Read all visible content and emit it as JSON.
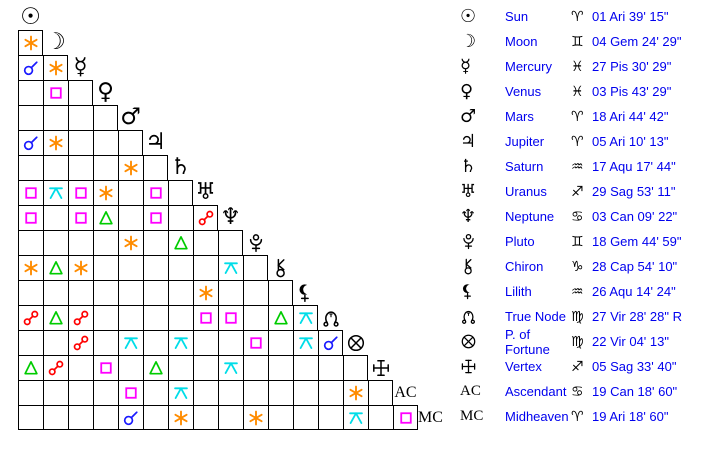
{
  "colors": {
    "background": "#ffffff",
    "grid_line": "#000000",
    "glyph_black": "#000000",
    "table_text_blue": "#0000ee"
  },
  "aspect_grid": {
    "planets": [
      {
        "key": "sun",
        "glyph": "☉"
      },
      {
        "key": "moon",
        "glyph": "☽"
      },
      {
        "key": "mercury",
        "glyph": "☿"
      },
      {
        "key": "venus",
        "glyph": "♀"
      },
      {
        "key": "mars",
        "glyph": "♂"
      },
      {
        "key": "jupiter",
        "glyph": "♃"
      },
      {
        "key": "saturn",
        "glyph": "♄"
      },
      {
        "key": "uranus",
        "glyph": "♅"
      },
      {
        "key": "neptune",
        "glyph": "♆"
      },
      {
        "key": "pluto",
        "glyph": null
      },
      {
        "key": "chiron",
        "glyph": null
      },
      {
        "key": "lilith",
        "glyph": null
      },
      {
        "key": "truenode",
        "glyph": null
      },
      {
        "key": "pof",
        "glyph": null
      },
      {
        "key": "vertex",
        "glyph": null
      },
      {
        "key": "ac",
        "glyph": null,
        "abbr": "AC"
      },
      {
        "key": "mc",
        "glyph": null,
        "abbr": "MC"
      }
    ],
    "aspect_types": {
      "cj": {
        "label": "conjunction",
        "color": "#1a1aff"
      },
      "sx": {
        "label": "sextile",
        "color": "#ff8c00"
      },
      "sq": {
        "label": "square",
        "color": "#ff00ff"
      },
      "tr": {
        "label": "trine",
        "color": "#00cc00"
      },
      "op": {
        "label": "opposition",
        "color": "#ff0000"
      },
      "qx": {
        "label": "quincunx",
        "color": "#00dde8"
      }
    },
    "matrix": [
      [],
      [
        "sx"
      ],
      [
        "cj",
        "sx"
      ],
      [
        null,
        "sq",
        null
      ],
      [
        null,
        null,
        null,
        null
      ],
      [
        "cj",
        "sx",
        null,
        null,
        null
      ],
      [
        null,
        null,
        null,
        null,
        "sx",
        null
      ],
      [
        "sq",
        "qx",
        "sq",
        "sx",
        null,
        "sq",
        null
      ],
      [
        "sq",
        null,
        "sq",
        "tr",
        null,
        "sq",
        null,
        "op"
      ],
      [
        null,
        null,
        null,
        null,
        "sx",
        null,
        "tr",
        null,
        null
      ],
      [
        "sx",
        "tr",
        "sx",
        null,
        null,
        null,
        null,
        null,
        "qx",
        null
      ],
      [
        null,
        null,
        null,
        null,
        null,
        null,
        null,
        "sx",
        null,
        null,
        null
      ],
      [
        "op",
        "tr",
        "op",
        null,
        null,
        null,
        null,
        "sq",
        "sq",
        null,
        "tr",
        "qx"
      ],
      [
        null,
        null,
        "op",
        null,
        "qx",
        null,
        "qx",
        null,
        null,
        "sq",
        null,
        "qx",
        "cj"
      ],
      [
        "tr",
        "op",
        null,
        "sq",
        null,
        "tr",
        null,
        null,
        "qx",
        null,
        null,
        null,
        null,
        null
      ],
      [
        null,
        null,
        null,
        null,
        "sq",
        null,
        "qx",
        null,
        null,
        null,
        null,
        null,
        null,
        "sx",
        null
      ],
      [
        null,
        null,
        null,
        null,
        "cj",
        null,
        "sx",
        null,
        null,
        "sx",
        null,
        null,
        null,
        "qx",
        null,
        "sq"
      ]
    ]
  },
  "positions_table": {
    "rows": [
      {
        "name": "Sun",
        "sign_glyph": "♈",
        "position": "01 Ari 39' 15\""
      },
      {
        "name": "Moon",
        "sign_glyph": "♊",
        "position": "04 Gem 24' 29\""
      },
      {
        "name": "Mercury",
        "sign_glyph": "♓",
        "position": "27 Pis 30' 29\""
      },
      {
        "name": "Venus",
        "sign_glyph": "♓",
        "position": "03 Pis 43' 29\""
      },
      {
        "name": "Mars",
        "sign_glyph": "♈",
        "position": "18 Ari 44' 42\""
      },
      {
        "name": "Jupiter",
        "sign_glyph": "♈",
        "position": "05 Ari 10' 13\""
      },
      {
        "name": "Saturn",
        "sign_glyph": "♒",
        "position": "17 Aqu 17' 44\""
      },
      {
        "name": "Uranus",
        "sign_glyph": "♐",
        "position": "29 Sag 53' 11\""
      },
      {
        "name": "Neptune",
        "sign_glyph": "♋",
        "position": "03 Can 09' 22\""
      },
      {
        "name": "Pluto",
        "sign_glyph": "♊",
        "position": "18 Gem 44' 59\""
      },
      {
        "name": "Chiron",
        "sign_glyph": "♑",
        "position": "28 Cap 54' 10\""
      },
      {
        "name": "Lilith",
        "sign_glyph": "♒",
        "position": "26 Aqu 14' 24\""
      },
      {
        "name": "True Node",
        "sign_glyph": "♍",
        "position": "27 Vir 28' 28\" R"
      },
      {
        "name": "P. of Fortune",
        "sign_glyph": "♍",
        "position": "22 Vir 04' 13\""
      },
      {
        "name": "Vertex",
        "sign_glyph": "♐",
        "position": "05 Sag 33' 40\""
      },
      {
        "name": "Ascendant",
        "sign_glyph": "♋",
        "position": "19 Can 18' 60\""
      },
      {
        "name": "Midheaven",
        "sign_glyph": "♈",
        "position": "19 Ari 18' 60\""
      }
    ]
  }
}
